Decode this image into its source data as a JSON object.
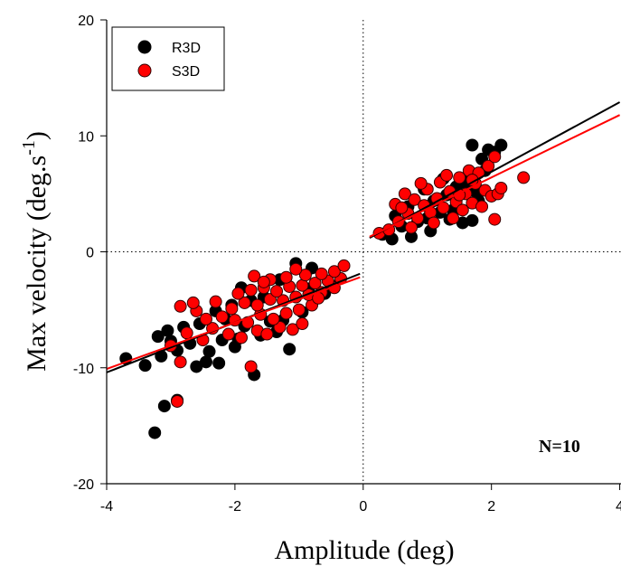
{
  "chart_data": {
    "type": "scatter",
    "xlabel": "Amplitude (deg)",
    "ylabel_main": "Max velocity (deg.s",
    "ylabel_sup": "-1",
    "ylabel_close": ")",
    "xlim": [
      -4,
      4
    ],
    "ylim": [
      -20,
      20
    ],
    "x_ticks": [
      -4,
      -2,
      0,
      2,
      4
    ],
    "y_ticks": [
      -20,
      -10,
      0,
      10,
      20
    ],
    "x_tick_labels": [
      "-4",
      "-2",
      "0",
      "2",
      "4"
    ],
    "y_tick_labels": [
      "-20",
      "-10",
      "0",
      "10",
      "20"
    ],
    "grid": false,
    "zero_lines": "dotted",
    "legend_position": "top-left",
    "annotation": "N=10",
    "series": [
      {
        "name": "R3D",
        "color": "#000000",
        "stroke": "#000000",
        "fit_lines": [
          {
            "x": [
              -4.0,
              -0.05
            ],
            "y": [
              -10.4,
              -1.9
            ]
          },
          {
            "x": [
              0.1,
              4.0
            ],
            "y": [
              1.2,
              12.9
            ]
          }
        ],
        "points": [
          [
            -3.25,
            -15.6
          ],
          [
            -3.1,
            -13.3
          ],
          [
            -2.9,
            -12.8
          ],
          [
            -1.7,
            -10.6
          ],
          [
            -3.7,
            -9.2
          ],
          [
            -3.4,
            -9.8
          ],
          [
            -2.6,
            -9.9
          ],
          [
            -2.45,
            -9.5
          ],
          [
            -2.25,
            -9.6
          ],
          [
            -3.15,
            -9.0
          ],
          [
            -1.15,
            -8.4
          ],
          [
            -2.0,
            -8.2
          ],
          [
            -2.9,
            -8.5
          ],
          [
            -3.0,
            -7.7
          ],
          [
            -3.2,
            -7.3
          ],
          [
            -2.7,
            -7.9
          ],
          [
            -2.4,
            -8.6
          ],
          [
            -2.2,
            -7.6
          ],
          [
            -1.95,
            -7.5
          ],
          [
            -1.6,
            -7.2
          ],
          [
            -1.35,
            -6.9
          ],
          [
            -2.8,
            -6.5
          ],
          [
            -2.55,
            -6.2
          ],
          [
            -3.05,
            -6.8
          ],
          [
            -1.85,
            -6.4
          ],
          [
            -2.15,
            -5.8
          ],
          [
            -1.45,
            -6.0
          ],
          [
            -1.25,
            -5.9
          ],
          [
            -0.95,
            -5.2
          ],
          [
            -1.05,
            -1.0
          ],
          [
            -0.8,
            -1.4
          ],
          [
            -2.3,
            -5.1
          ],
          [
            -1.75,
            -4.2
          ],
          [
            -0.6,
            -3.6
          ],
          [
            -0.5,
            -2.9
          ],
          [
            -2.05,
            -4.6
          ],
          [
            -1.55,
            -3.9
          ],
          [
            -0.85,
            -3.2
          ],
          [
            -1.9,
            -3.1
          ],
          [
            -1.3,
            -2.4
          ],
          [
            0.3,
            1.5
          ],
          [
            0.45,
            1.1
          ],
          [
            0.6,
            2.2
          ],
          [
            0.75,
            1.3
          ],
          [
            0.5,
            3.1
          ],
          [
            0.85,
            2.6
          ],
          [
            1.0,
            2.9
          ],
          [
            1.2,
            3.4
          ],
          [
            1.35,
            2.8
          ],
          [
            1.55,
            2.5
          ],
          [
            1.7,
            2.7
          ],
          [
            1.1,
            4.4
          ],
          [
            1.3,
            4.9
          ],
          [
            1.45,
            5.6
          ],
          [
            1.6,
            6.0
          ],
          [
            1.75,
            5.2
          ],
          [
            1.9,
            7.0
          ],
          [
            1.85,
            8.0
          ],
          [
            1.7,
            9.2
          ],
          [
            2.05,
            8.6
          ],
          [
            1.95,
            8.8
          ],
          [
            2.15,
            9.2
          ],
          [
            0.95,
            5.4
          ],
          [
            1.25,
            6.3
          ],
          [
            1.4,
            3.6
          ],
          [
            1.8,
            4.4
          ],
          [
            0.7,
            3.9
          ],
          [
            1.05,
            1.8
          ]
        ]
      },
      {
        "name": "S3D",
        "color": "#ff0000",
        "stroke": "#330000",
        "fit_lines": [
          {
            "x": [
              -4.0,
              -0.05
            ],
            "y": [
              -10.1,
              -2.2
            ]
          },
          {
            "x": [
              0.1,
              4.0
            ],
            "y": [
              1.3,
              11.8
            ]
          }
        ],
        "points": [
          [
            -2.9,
            -12.9
          ],
          [
            -1.75,
            -9.9
          ],
          [
            -2.85,
            -9.5
          ],
          [
            -3.0,
            -8.1
          ],
          [
            -2.75,
            -7.0
          ],
          [
            -2.5,
            -7.6
          ],
          [
            -2.35,
            -6.6
          ],
          [
            -2.1,
            -7.1
          ],
          [
            -1.9,
            -7.4
          ],
          [
            -1.65,
            -6.8
          ],
          [
            -1.5,
            -7.1
          ],
          [
            -1.3,
            -6.5
          ],
          [
            -1.1,
            -6.7
          ],
          [
            -0.95,
            -6.2
          ],
          [
            -2.85,
            -4.7
          ],
          [
            -2.6,
            -5.1
          ],
          [
            -2.45,
            -5.8
          ],
          [
            -2.2,
            -5.6
          ],
          [
            -2.0,
            -5.9
          ],
          [
            -1.8,
            -6.1
          ],
          [
            -1.6,
            -5.4
          ],
          [
            -1.4,
            -5.8
          ],
          [
            -1.2,
            -5.3
          ],
          [
            -1.0,
            -5.0
          ],
          [
            -0.8,
            -4.6
          ],
          [
            -2.3,
            -4.3
          ],
          [
            -2.05,
            -4.9
          ],
          [
            -1.85,
            -4.4
          ],
          [
            -1.65,
            -4.6
          ],
          [
            -1.45,
            -4.1
          ],
          [
            -1.25,
            -4.2
          ],
          [
            -1.05,
            -3.9
          ],
          [
            -0.85,
            -3.7
          ],
          [
            -0.65,
            -3.5
          ],
          [
            -0.45,
            -3.1
          ],
          [
            -1.95,
            -3.6
          ],
          [
            -1.75,
            -3.3
          ],
          [
            -1.55,
            -3.1
          ],
          [
            -1.35,
            -3.4
          ],
          [
            -1.15,
            -3.0
          ],
          [
            -0.95,
            -2.9
          ],
          [
            -0.75,
            -2.7
          ],
          [
            -0.55,
            -2.5
          ],
          [
            -0.35,
            -2.3
          ],
          [
            -1.7,
            -2.1
          ],
          [
            -1.45,
            -2.4
          ],
          [
            -1.2,
            -2.2
          ],
          [
            -0.9,
            -2.0
          ],
          [
            -0.65,
            -1.9
          ],
          [
            -0.45,
            -1.7
          ],
          [
            -0.3,
            -1.2
          ],
          [
            -1.05,
            -1.5
          ],
          [
            -1.55,
            -2.6
          ],
          [
            -2.65,
            -4.4
          ],
          [
            -0.7,
            -4.0
          ],
          [
            0.25,
            1.6
          ],
          [
            0.4,
            1.9
          ],
          [
            0.55,
            2.6
          ],
          [
            0.5,
            4.1
          ],
          [
            0.65,
            5.0
          ],
          [
            0.7,
            3.3
          ],
          [
            0.8,
            4.5
          ],
          [
            0.85,
            2.9
          ],
          [
            0.95,
            4.0
          ],
          [
            1.0,
            5.4
          ],
          [
            1.05,
            3.4
          ],
          [
            1.15,
            4.6
          ],
          [
            1.2,
            6.0
          ],
          [
            1.25,
            3.8
          ],
          [
            1.35,
            5.2
          ],
          [
            1.4,
            2.9
          ],
          [
            1.45,
            4.3
          ],
          [
            1.5,
            6.4
          ],
          [
            1.55,
            3.6
          ],
          [
            1.6,
            5.0
          ],
          [
            1.65,
            7.0
          ],
          [
            1.7,
            4.2
          ],
          [
            1.75,
            5.9
          ],
          [
            1.8,
            6.8
          ],
          [
            1.85,
            3.9
          ],
          [
            1.9,
            5.3
          ],
          [
            1.95,
            7.4
          ],
          [
            2.0,
            4.8
          ],
          [
            2.05,
            2.8
          ],
          [
            2.1,
            5.0
          ],
          [
            2.15,
            5.5
          ],
          [
            2.05,
            8.2
          ],
          [
            2.5,
            6.4
          ],
          [
            1.3,
            6.6
          ],
          [
            0.9,
            5.9
          ],
          [
            1.1,
            2.5
          ],
          [
            0.6,
            3.8
          ],
          [
            1.5,
            4.9
          ],
          [
            1.7,
            6.2
          ],
          [
            0.75,
            2.1
          ]
        ]
      }
    ]
  }
}
